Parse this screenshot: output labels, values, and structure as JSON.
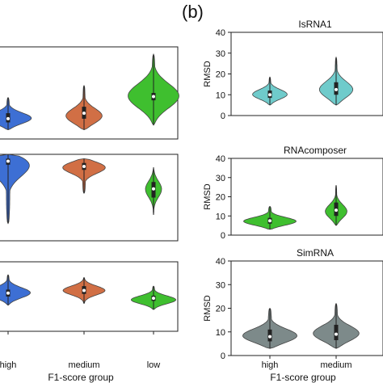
{
  "panel_b_label": "(b)",
  "colors": {
    "high": "#3d6fd4",
    "medium": "#d16f45",
    "low": "#3fbf2f",
    "isrna1": "#6fcbcb",
    "rnacomposer": "#3fbf2f",
    "simrna": "#7d8a8a",
    "box": "#222222",
    "median": "#ffffff"
  },
  "chart_data": [
    {
      "type": "violin",
      "panel": "a-top",
      "categories": [
        "high",
        "medium",
        "low"
      ],
      "violins": [
        {
          "category": "high",
          "min": 0.1,
          "q1": 0.18,
          "median": 0.22,
          "q3": 0.28,
          "max": 0.45,
          "mode": 0.22,
          "color_key": "high"
        },
        {
          "category": "medium",
          "min": 0.1,
          "q1": 0.22,
          "median": 0.28,
          "q3": 0.35,
          "max": 0.58,
          "mode": 0.24,
          "color_key": "medium"
        },
        {
          "category": "low",
          "min": 0.15,
          "q1": 0.42,
          "median": 0.46,
          "q3": 0.5,
          "max": 0.92,
          "mode": 0.46,
          "color_key": "low"
        }
      ]
    },
    {
      "type": "violin",
      "panel": "a-middle",
      "categories": [
        "high",
        "medium",
        "low"
      ],
      "violins": [
        {
          "category": "high",
          "min": 0.2,
          "q1": 0.88,
          "median": 0.92,
          "q3": 0.95,
          "max": 1.0,
          "mode": 0.92,
          "color_key": "high"
        },
        {
          "category": "medium",
          "min": 0.55,
          "q1": 0.82,
          "median": 0.86,
          "q3": 0.9,
          "max": 0.95,
          "mode": 0.86,
          "color_key": "medium"
        },
        {
          "category": "low",
          "min": 0.3,
          "q1": 0.5,
          "median": 0.6,
          "q3": 0.68,
          "max": 0.85,
          "mode": 0.6,
          "color_key": "low"
        }
      ]
    },
    {
      "type": "violin",
      "panel": "a-bottom",
      "categories": [
        "high",
        "medium",
        "low"
      ],
      "tick_labels": [
        "high",
        "medium",
        "low"
      ],
      "xlabel": "F1-score group",
      "violins": [
        {
          "category": "high",
          "min": 0.5,
          "q1": 0.6,
          "median": 0.64,
          "q3": 0.68,
          "max": 0.85,
          "mode": 0.64,
          "color_key": "high"
        },
        {
          "category": "medium",
          "min": 0.52,
          "q1": 0.63,
          "median": 0.67,
          "q3": 0.72,
          "max": 0.82,
          "mode": 0.67,
          "color_key": "medium"
        },
        {
          "category": "low",
          "min": 0.45,
          "q1": 0.55,
          "median": 0.58,
          "q3": 0.61,
          "max": 0.72,
          "mode": 0.56,
          "color_key": "low"
        }
      ]
    },
    {
      "type": "violin",
      "panel": "b-top",
      "title": "IsRNA1",
      "ylabel": "RMSD",
      "ylim": [
        0,
        40
      ],
      "yticks": [
        0,
        10,
        20,
        30,
        40
      ],
      "categories": [
        "high",
        "medium"
      ],
      "violins": [
        {
          "category": "high",
          "min": 5,
          "q1": 8.5,
          "median": 10,
          "q3": 12,
          "max": 18.5,
          "mode": 10,
          "color_key": "isrna1"
        },
        {
          "category": "medium",
          "min": 5,
          "q1": 10,
          "median": 12.5,
          "q3": 16,
          "max": 28,
          "mode": 12,
          "color_key": "isrna1"
        }
      ]
    },
    {
      "type": "violin",
      "panel": "b-middle",
      "title": "RNAcomposer",
      "ylabel": "RMSD",
      "ylim": [
        0,
        40
      ],
      "yticks": [
        0,
        10,
        20,
        30,
        40
      ],
      "categories": [
        "high",
        "medium"
      ],
      "violins": [
        {
          "category": "high",
          "min": 3,
          "q1": 6,
          "median": 7.5,
          "q3": 9,
          "max": 15,
          "mode": 7,
          "color_key": "rnacomposer"
        },
        {
          "category": "medium",
          "min": 5,
          "q1": 10,
          "median": 13,
          "q3": 17,
          "max": 26,
          "mode": 12,
          "color_key": "rnacomposer"
        }
      ]
    },
    {
      "type": "violin",
      "panel": "b-bottom",
      "title": "SimRNA",
      "ylabel": "RMSD",
      "ylim": [
        0,
        40
      ],
      "yticks": [
        0,
        10,
        20,
        30,
        40
      ],
      "categories": [
        "high",
        "medium"
      ],
      "tick_labels": [
        "high",
        "medium"
      ],
      "xlabel": "F1-score group",
      "violins": [
        {
          "category": "high",
          "min": 3,
          "q1": 6,
          "median": 8,
          "q3": 11,
          "max": 20,
          "mode": 8,
          "color_key": "simrna"
        },
        {
          "category": "medium",
          "min": 3,
          "q1": 6.5,
          "median": 9,
          "q3": 13,
          "max": 22,
          "mode": 9,
          "color_key": "simrna"
        }
      ]
    }
  ]
}
